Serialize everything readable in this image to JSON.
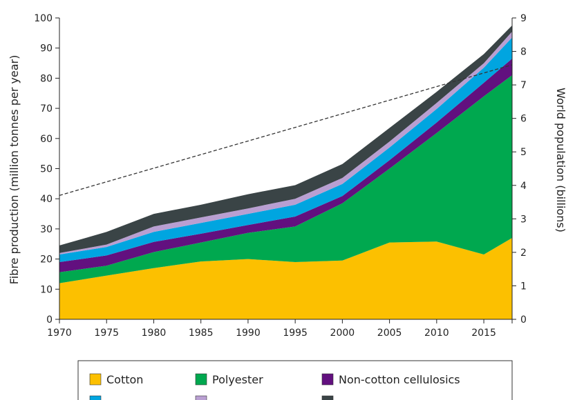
{
  "chart_data": {
    "type": "area",
    "stacked": true,
    "title": "",
    "xlabel": "",
    "ylabel": "Fibre production (million tonnes per year)",
    "y2label": "World population (billions)",
    "xlim": [
      1970,
      2018
    ],
    "ylim": [
      0,
      100
    ],
    "y2lim": [
      0,
      9
    ],
    "x_ticks": [
      "1970",
      "1975",
      "1980",
      "1985",
      "1990",
      "1995",
      "2000",
      "2005",
      "2010",
      "2015"
    ],
    "y_ticks": [
      "0",
      "10",
      "20",
      "30",
      "40",
      "50",
      "60",
      "70",
      "80",
      "90",
      "100"
    ],
    "y2_ticks": [
      "0",
      "1",
      "2",
      "3",
      "4",
      "5",
      "6",
      "7",
      "8",
      "9"
    ],
    "x": [
      1970,
      1975,
      1980,
      1985,
      1990,
      1995,
      2000,
      2005,
      2010,
      2015,
      2018
    ],
    "series": [
      {
        "name": "Cotton",
        "color": "#fcc000",
        "values": [
          12.0,
          14.5,
          17.0,
          19.2,
          20.0,
          19.0,
          19.5,
          25.5,
          25.8,
          21.5,
          27.0
        ]
      },
      {
        "name": "Polyester",
        "color": "#00a84f",
        "values": [
          3.6,
          3.3,
          5.3,
          6.3,
          8.7,
          11.8,
          19.0,
          24.5,
          36.0,
          52.5,
          54.0
        ]
      },
      {
        "name": "Non-cotton cellulosics",
        "color": "#62107f",
        "values": [
          3.4,
          3.4,
          3.4,
          2.9,
          2.6,
          3.3,
          2.4,
          2.8,
          3.5,
          4.5,
          5.5
        ]
      },
      {
        "name": "",
        "color": "#00a5e0",
        "values": [
          2.5,
          2.8,
          3.3,
          3.6,
          3.7,
          3.9,
          4.0,
          4.2,
          4.5,
          5.0,
          7.0
        ]
      },
      {
        "name": "",
        "color": "#b99fd2",
        "values": [
          0.5,
          0.8,
          1.8,
          1.8,
          1.8,
          2.0,
          2.0,
          2.0,
          2.0,
          1.5,
          2.0
        ]
      },
      {
        "name": "",
        "color": "#3a4446",
        "values": [
          2.5,
          4.2,
          4.2,
          4.2,
          4.7,
          4.5,
          4.6,
          4.5,
          3.7,
          3.0,
          2.0
        ]
      }
    ],
    "population": {
      "style": "dashed",
      "color": "#333333",
      "axis": "right",
      "x": [
        1970,
        2018
      ],
      "y": [
        3.7,
        7.6
      ]
    },
    "legend": {
      "placement": "bottom",
      "entries": [
        "Cotton",
        "Polyester",
        "Non-cotton cellulosics"
      ]
    }
  }
}
